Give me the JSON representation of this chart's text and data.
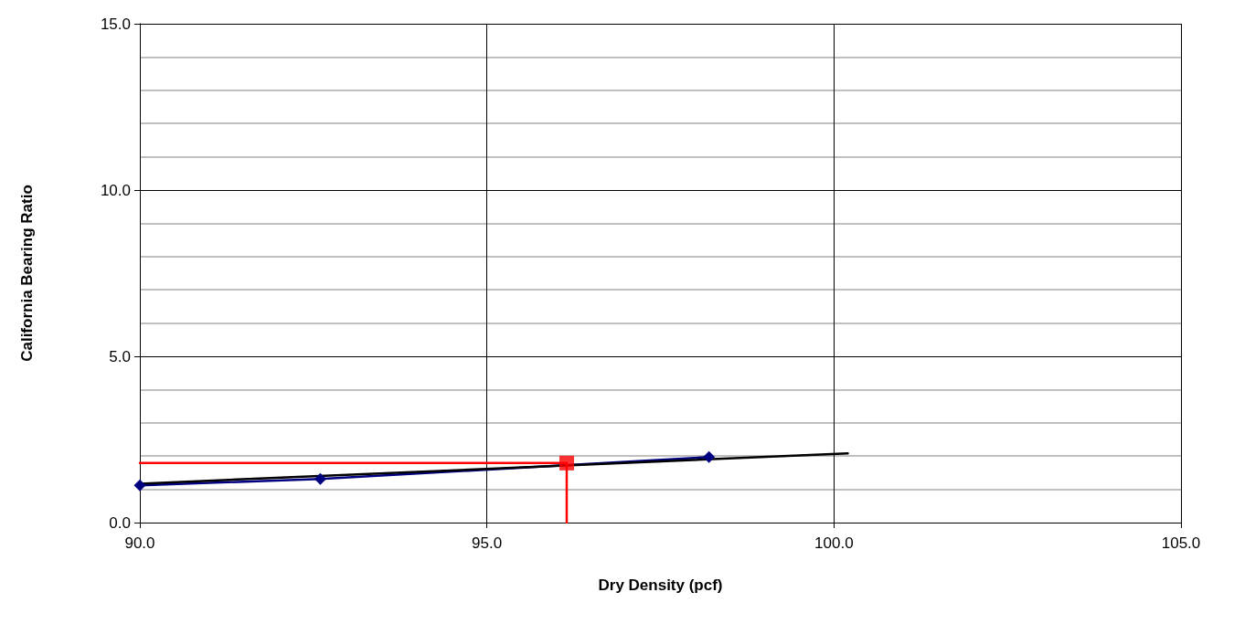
{
  "chart_data": {
    "type": "line",
    "xlabel": "Dry Density (pcf)",
    "ylabel": "California Bearing Ratio",
    "xlim": [
      90,
      105
    ],
    "xticks": [
      {
        "value": 90,
        "label": "90.0"
      },
      {
        "value": 95,
        "label": "95.0"
      },
      {
        "value": 100,
        "label": "100.0"
      },
      {
        "value": 105,
        "label": "105.0"
      }
    ],
    "ylim": [
      0,
      15
    ],
    "yticks": [
      {
        "value": 0,
        "label": "0.0"
      },
      {
        "value": 5,
        "label": "5.0"
      },
      {
        "value": 10,
        "label": "10.0"
      },
      {
        "value": 15,
        "label": "15.0"
      }
    ],
    "grid": true,
    "series": [
      {
        "color": "#000080",
        "marker": "diamond",
        "x": [
          90,
          92.6,
          98.2
        ],
        "values": [
          1.12,
          1.31,
          1.97
        ]
      },
      {
        "color": "#000000",
        "marker": "none",
        "x": [
          90,
          100.2
        ],
        "values": [
          1.17,
          2.08
        ]
      },
      {
        "color": "#ff0000",
        "marker": "none",
        "x": [
          90,
          96.15,
          96.15
        ],
        "values": [
          1.79,
          1.79,
          0
        ]
      },
      {
        "type": "scatter",
        "color": "#ff0000",
        "marker": "square",
        "x": [
          96.15
        ],
        "values": [
          1.79
        ]
      }
    ]
  }
}
